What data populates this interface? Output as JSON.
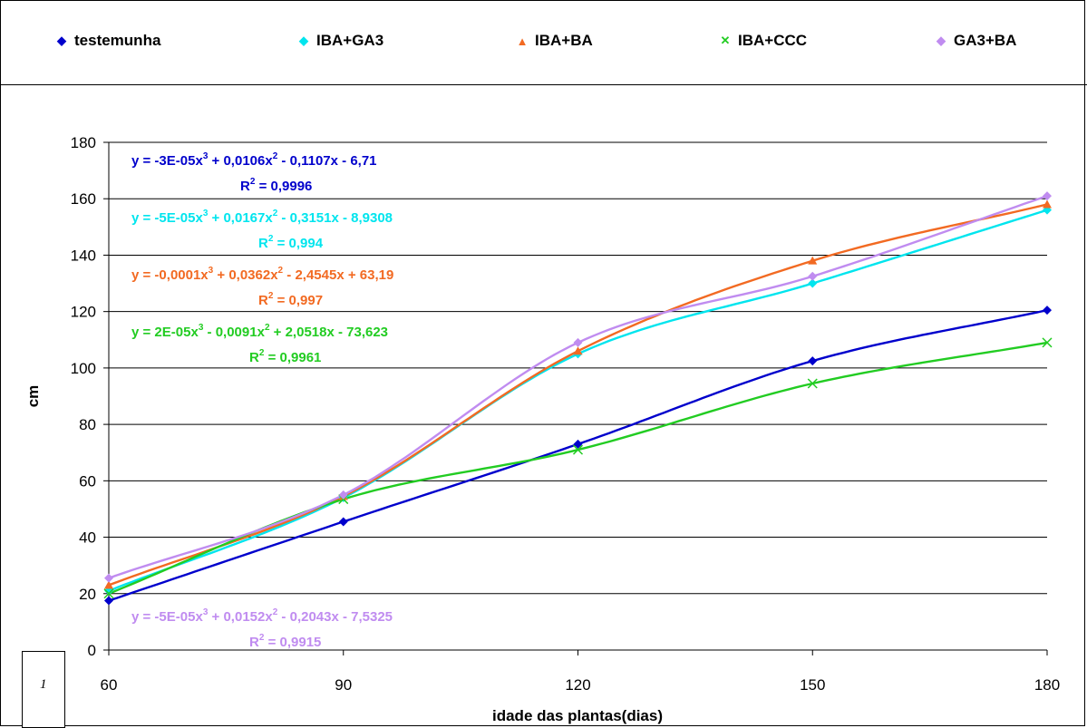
{
  "legend": [
    {
      "label": "testemunha",
      "color": "#0000CC",
      "marker": "◆"
    },
    {
      "label": "IBA+GA3",
      "color": "#00E5EE",
      "marker": "◆"
    },
    {
      "label": "IBA+BA",
      "color": "#F26A22",
      "marker": "▲"
    },
    {
      "label": "IBA+CCC",
      "color": "#22CC22",
      "marker": "✕"
    },
    {
      "label": "GA3+BA",
      "color": "#C08CF0",
      "marker": "◆"
    }
  ],
  "corner_glyph": "1",
  "chart_data": {
    "type": "scatter",
    "title": "",
    "xlabel": "idade das plantas(dias)",
    "ylabel": "cm",
    "x": [
      60,
      90,
      120,
      150,
      180
    ],
    "xlim": [
      60,
      180
    ],
    "ylim": [
      0,
      180
    ],
    "xticks": [
      "60",
      "90",
      "120",
      "150",
      "180"
    ],
    "yticks": [
      "0",
      "20",
      "40",
      "60",
      "80",
      "100",
      "120",
      "140",
      "160",
      "180"
    ],
    "grid": "horizontal",
    "legend_position": "top",
    "series": [
      {
        "name": "testemunha",
        "color": "#0000CC",
        "marker": "diamond",
        "values": [
          17.5,
          45.5,
          73,
          102.5,
          120.5
        ],
        "trend": {
          "a": -3e-05,
          "b": 0.0106,
          "c": -0.1107,
          "d": -6.71
        },
        "equation": {
          "prefix": "y = -3E-05x",
          "mid1": " + 0,0106x",
          "mid2": " - 0,1107x - 6,71",
          "r2_prefix": "R",
          "r2_suffix": " = 0,9996"
        }
      },
      {
        "name": "IBA+GA3",
        "color": "#00E5EE",
        "marker": "diamond",
        "values": [
          21,
          54,
          105,
          130,
          156
        ],
        "trend": {
          "a": -5e-05,
          "b": 0.0167,
          "c": -0.3151,
          "d": -8.9308
        },
        "equation": {
          "prefix": "y = -5E-05x",
          "mid1": " + 0,0167x",
          "mid2": " - 0,3151x - 8,9308",
          "r2_prefix": "R",
          "r2_suffix": " = 0,994"
        }
      },
      {
        "name": "IBA+BA",
        "color": "#F26A22",
        "marker": "triangle",
        "values": [
          23,
          54.5,
          106,
          138,
          158
        ],
        "trend": {
          "a": -0.0001,
          "b": 0.0362,
          "c": -2.4545,
          "d": 63.19
        },
        "equation": {
          "prefix": "y = -0,0001x",
          "mid1": " + 0,0362x",
          "mid2": " - 2,4545x + 63,19",
          "r2_prefix": "R",
          "r2_suffix": " = 0,997"
        }
      },
      {
        "name": "IBA+CCC",
        "color": "#22CC22",
        "marker": "x",
        "values": [
          20,
          53.5,
          71,
          94.5,
          109
        ],
        "trend": {
          "a": 2e-05,
          "b": -0.0091,
          "c": 2.0518,
          "d": -73.623
        },
        "equation": {
          "prefix": "y = 2E-05x",
          "mid1": " - 0,0091x",
          "mid2": " + 2,0518x - 73,623",
          "r2_prefix": "R",
          "r2_suffix": " = 0,9961"
        }
      },
      {
        "name": "GA3+BA",
        "color": "#C08CF0",
        "marker": "diamond",
        "values": [
          25.5,
          55,
          109,
          132.5,
          161
        ],
        "trend": {
          "a": -5e-05,
          "b": 0.0152,
          "c": -0.2043,
          "d": -7.5325
        },
        "equation": {
          "prefix": "y = -5E-05x",
          "mid1": " + 0,0152x",
          "mid2": " - 0,2043x - 7,5325",
          "r2_prefix": "R",
          "r2_suffix": " = 0,9915"
        }
      }
    ]
  }
}
